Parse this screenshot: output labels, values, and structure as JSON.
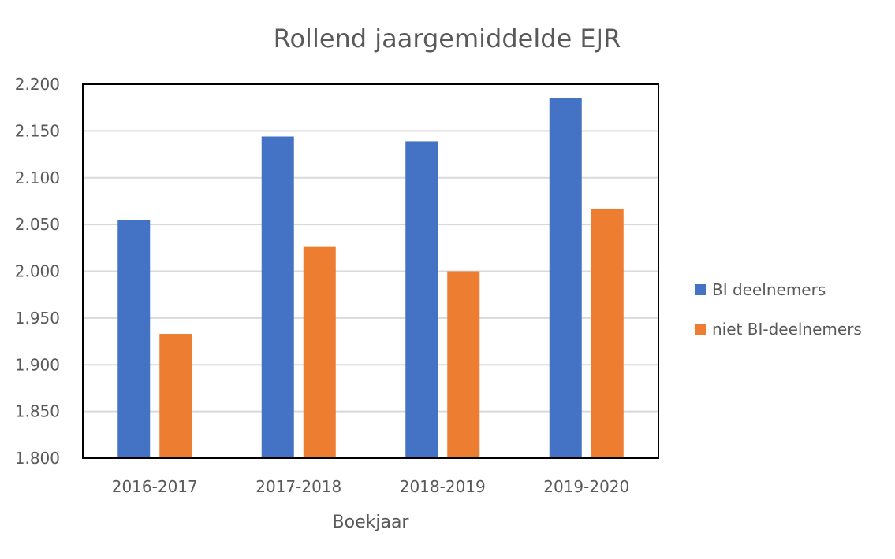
{
  "chart_data": {
    "type": "bar",
    "title": "Rollend jaargemiddelde EJR",
    "xlabel": "Boekjaar",
    "ylabel": "",
    "categories": [
      "2016-2017",
      "2017-2018",
      "2018-2019",
      "2019-2020"
    ],
    "series": [
      {
        "name": "BI deelnemers",
        "color": "#4472C4",
        "values": [
          2055,
          2144,
          2139,
          2185
        ]
      },
      {
        "name": "niet BI-deelnemers",
        "color": "#ED7D31",
        "values": [
          1933,
          2026,
          2000,
          2067
        ]
      }
    ],
    "ylim": [
      1800,
      2200
    ],
    "yticks": [
      1800,
      1850,
      1900,
      1950,
      2000,
      2050,
      2100,
      2150,
      2200
    ],
    "ytick_labels": [
      "1.800",
      "1.850",
      "1.900",
      "1.950",
      "2.000",
      "2.050",
      "2.100",
      "2.150",
      "2.200"
    ],
    "grid": true,
    "legend_position": "right"
  }
}
